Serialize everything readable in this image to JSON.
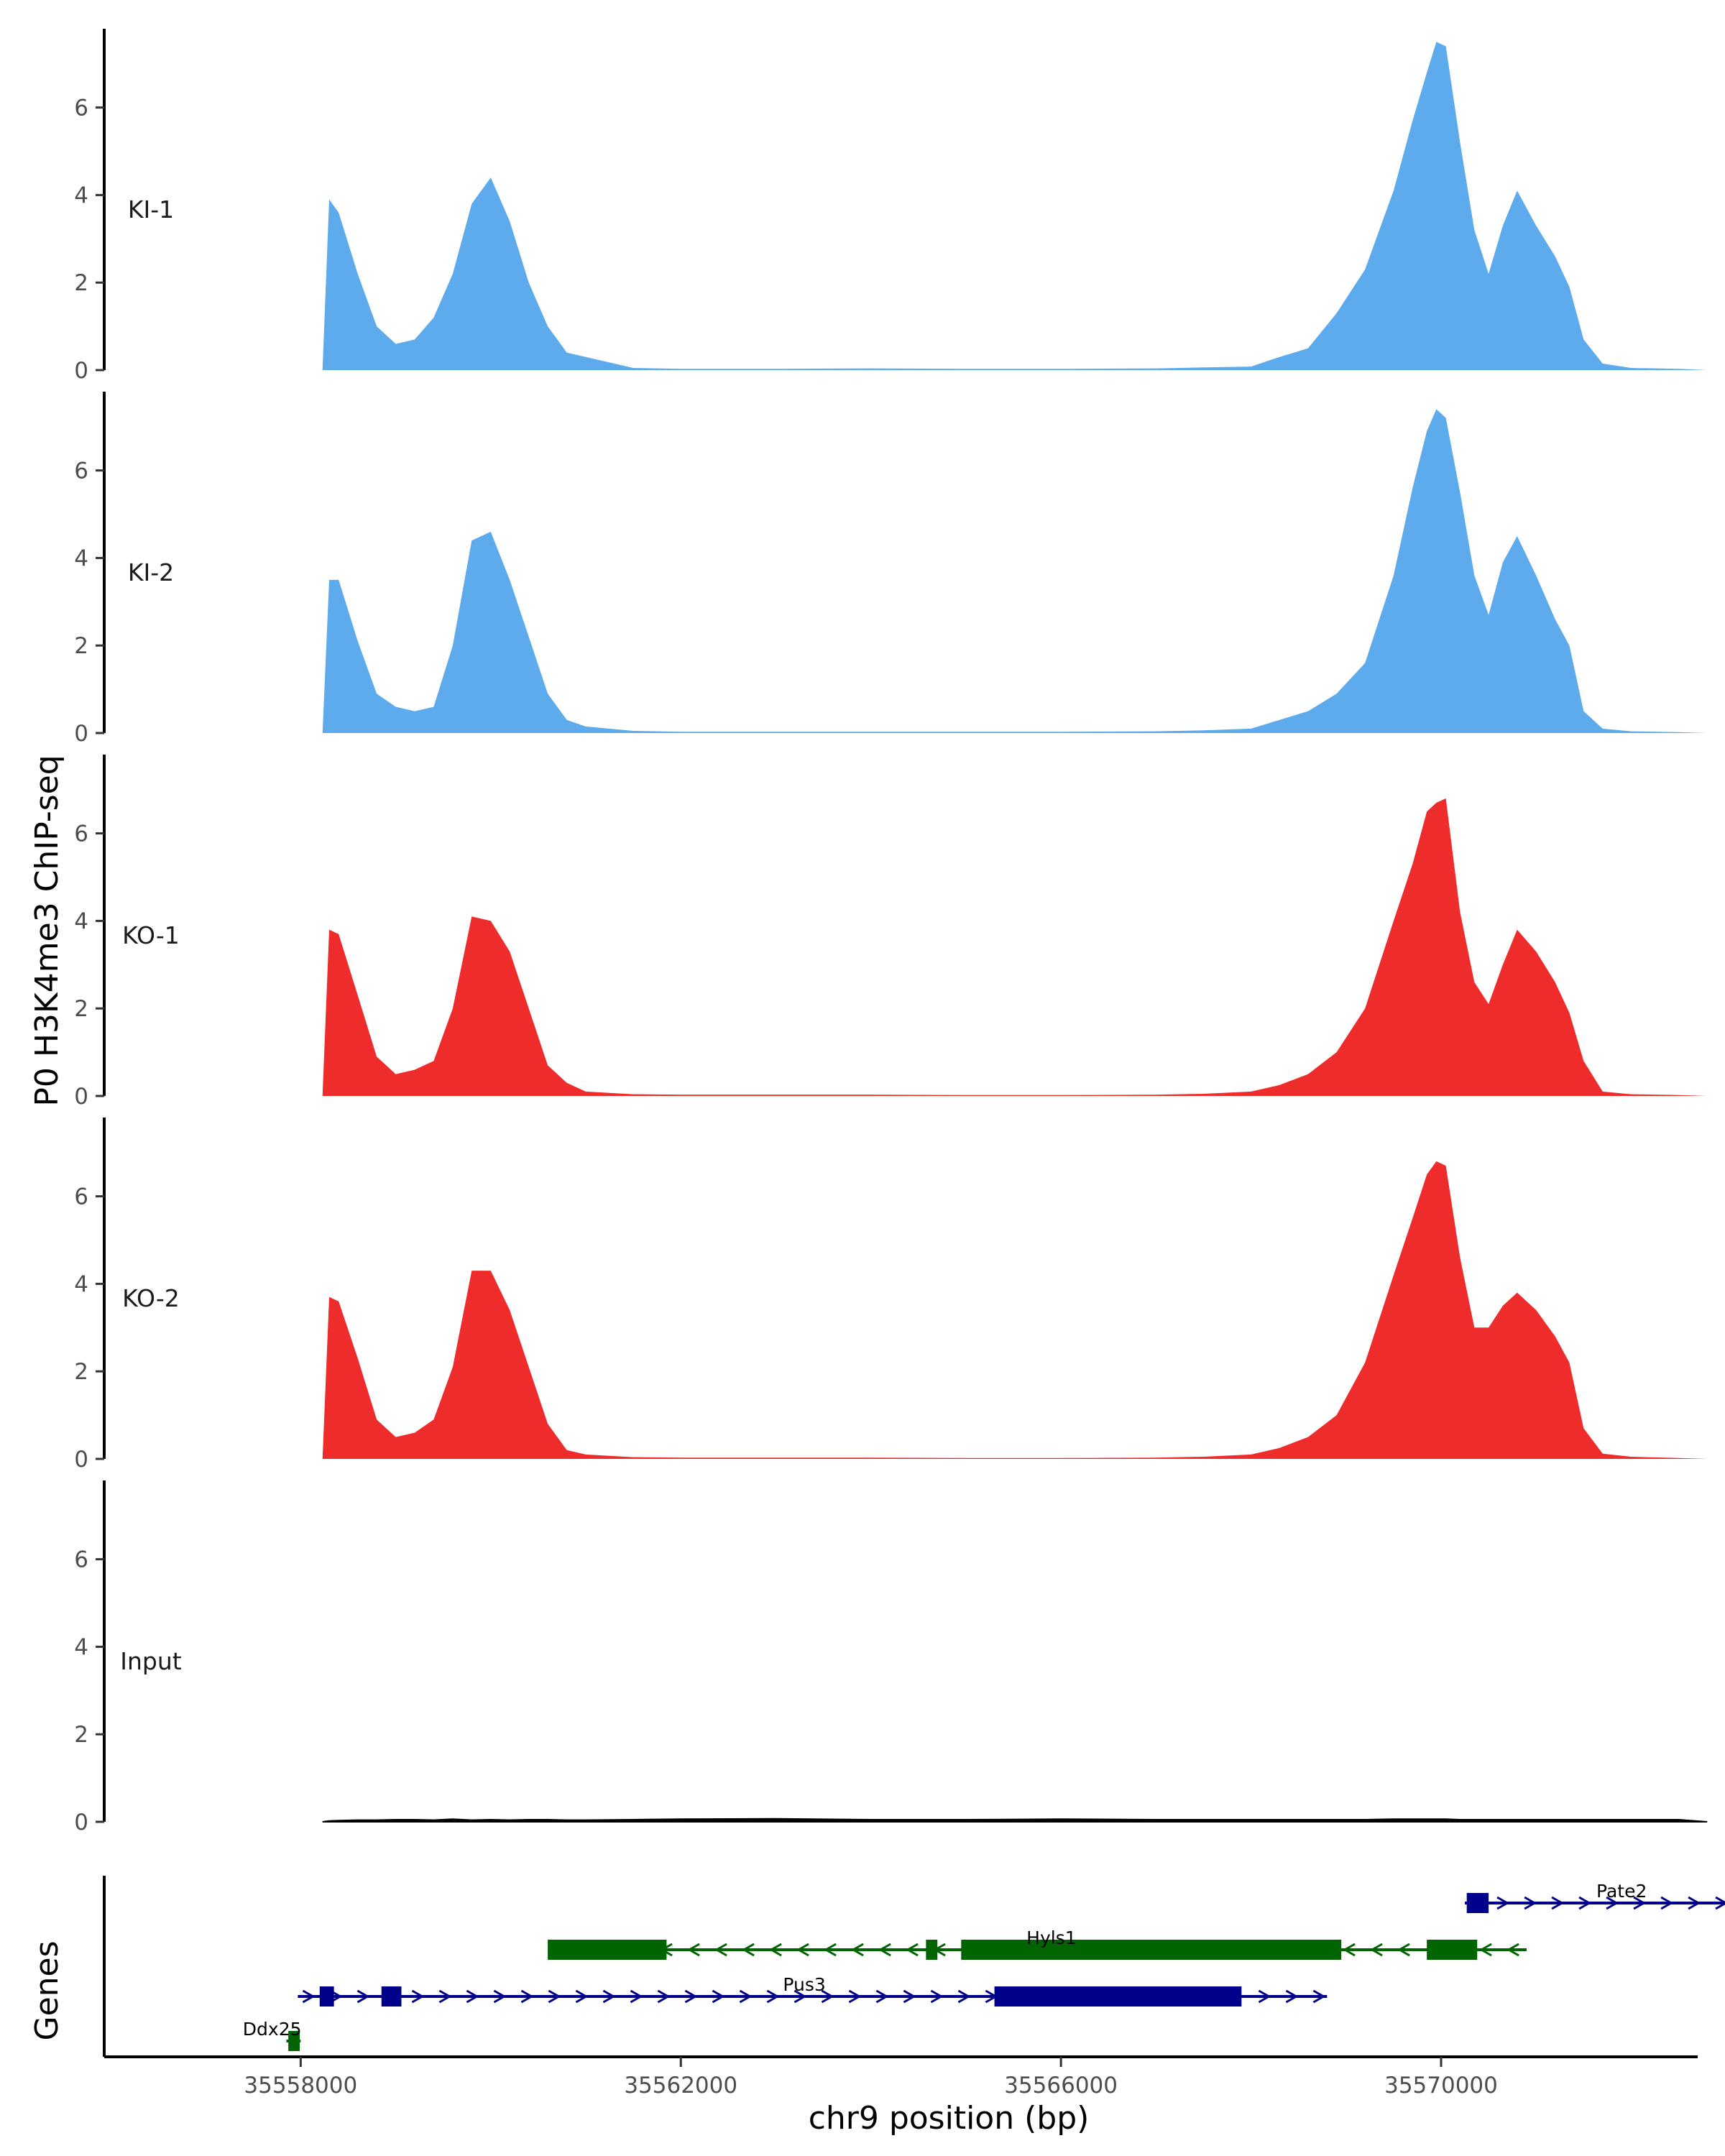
{
  "chart_data": {
    "type": "area",
    "title": "",
    "ylabel": "P0 H3K4me3 ChIP-seq",
    "xlabel": "chr9 position (bp)",
    "genes_label": "Genes",
    "ylim": [
      0,
      7.8
    ],
    "y_ticks": [
      "0",
      "2",
      "4",
      "6"
    ],
    "xlim": [
      35556500,
      35572700
    ],
    "x_ticks": [
      {
        "value": 35558000,
        "label": "35558000"
      },
      {
        "value": 35562000,
        "label": "35562000"
      },
      {
        "value": 35566000,
        "label": "35566000"
      },
      {
        "value": 35570000,
        "label": "35570000"
      }
    ],
    "x_positions": [
      35558230,
      35558300,
      35558400,
      35558600,
      35558800,
      35559000,
      35559200,
      35559400,
      35559600,
      35559800,
      35560000,
      35560200,
      35560400,
      35560600,
      35560800,
      35561000,
      35561500,
      35562000,
      35563000,
      35564000,
      35565000,
      35566000,
      35567000,
      35567500,
      35568000,
      35568300,
      35568600,
      35568900,
      35569200,
      35569500,
      35569700,
      35569850,
      35569950,
      35570050,
      35570200,
      35570350,
      35570500,
      35570650,
      35570800,
      35571000,
      35571200,
      35571350,
      35571500,
      35571700,
      35572000,
      35572500,
      35572800
    ],
    "series": [
      {
        "name": "KI-1",
        "color": "#5dabec",
        "values": [
          0.0,
          3.9,
          3.6,
          2.2,
          1.0,
          0.6,
          0.7,
          1.2,
          2.2,
          3.8,
          4.4,
          3.4,
          2.0,
          1.0,
          0.4,
          0.3,
          0.05,
          0.03,
          0.03,
          0.04,
          0.03,
          0.03,
          0.04,
          0.06,
          0.08,
          0.3,
          0.5,
          1.3,
          2.3,
          4.1,
          5.7,
          6.8,
          7.5,
          7.4,
          5.2,
          3.2,
          2.2,
          3.3,
          4.1,
          3.3,
          2.6,
          1.9,
          0.7,
          0.15,
          0.05,
          0.03,
          0.0
        ]
      },
      {
        "name": "KI-2",
        "color": "#5dabec",
        "values": [
          0.0,
          3.5,
          3.5,
          2.1,
          0.9,
          0.6,
          0.5,
          0.6,
          2.0,
          4.4,
          4.6,
          3.5,
          2.2,
          0.9,
          0.3,
          0.15,
          0.05,
          0.03,
          0.03,
          0.03,
          0.03,
          0.03,
          0.04,
          0.06,
          0.1,
          0.3,
          0.5,
          0.9,
          1.6,
          3.6,
          5.6,
          6.9,
          7.4,
          7.2,
          5.5,
          3.6,
          2.7,
          3.9,
          4.5,
          3.6,
          2.6,
          2.0,
          0.5,
          0.1,
          0.04,
          0.02,
          0.0
        ]
      },
      {
        "name": "KO-1",
        "color": "#ef2c2c",
        "values": [
          0.0,
          3.8,
          3.7,
          2.3,
          0.9,
          0.5,
          0.6,
          0.8,
          2.0,
          4.1,
          4.0,
          3.3,
          2.0,
          0.7,
          0.3,
          0.1,
          0.04,
          0.03,
          0.03,
          0.03,
          0.02,
          0.02,
          0.03,
          0.05,
          0.1,
          0.25,
          0.5,
          1.0,
          2.0,
          4.0,
          5.3,
          6.5,
          6.7,
          6.8,
          4.2,
          2.6,
          2.1,
          3.0,
          3.8,
          3.3,
          2.6,
          1.9,
          0.8,
          0.1,
          0.04,
          0.02,
          0.0
        ]
      },
      {
        "name": "KO-2",
        "color": "#ef2c2c",
        "values": [
          0.0,
          3.7,
          3.6,
          2.3,
          0.9,
          0.5,
          0.6,
          0.9,
          2.1,
          4.3,
          4.3,
          3.4,
          2.1,
          0.8,
          0.2,
          0.1,
          0.04,
          0.03,
          0.03,
          0.03,
          0.02,
          0.02,
          0.03,
          0.05,
          0.1,
          0.25,
          0.5,
          1.0,
          2.2,
          4.2,
          5.5,
          6.5,
          6.8,
          6.7,
          4.6,
          3.0,
          3.0,
          3.5,
          3.8,
          3.4,
          2.8,
          2.2,
          0.7,
          0.12,
          0.05,
          0.02,
          0.0
        ]
      },
      {
        "name": "Input",
        "color": "#000000",
        "values": [
          0.0,
          0.02,
          0.03,
          0.04,
          0.04,
          0.05,
          0.05,
          0.04,
          0.06,
          0.04,
          0.05,
          0.04,
          0.05,
          0.05,
          0.04,
          0.04,
          0.05,
          0.06,
          0.07,
          0.05,
          0.05,
          0.06,
          0.05,
          0.05,
          0.05,
          0.05,
          0.05,
          0.05,
          0.05,
          0.06,
          0.06,
          0.06,
          0.06,
          0.06,
          0.05,
          0.05,
          0.05,
          0.05,
          0.05,
          0.05,
          0.05,
          0.05,
          0.05,
          0.05,
          0.05,
          0.05,
          0.0
        ]
      }
    ],
    "genes": [
      {
        "name": "Pate2",
        "strand": "+",
        "color": "#00008b",
        "row": 0,
        "start": 35570250,
        "end": 35573100,
        "exons": [
          [
            35570270,
            35570500
          ]
        ],
        "label_pos": 35571900
      },
      {
        "name": "Hyls1",
        "strand": "-",
        "color": "#006400",
        "row": 1,
        "start": 35560600,
        "end": 35570900,
        "exons": [
          [
            35560600,
            35561850
          ],
          [
            35564580,
            35564700
          ],
          [
            35564950,
            35568950
          ],
          [
            35569850,
            35570380
          ]
        ],
        "label_pos": 35565900
      },
      {
        "name": "Pus3",
        "strand": "+",
        "color": "#00008b",
        "row": 2,
        "start": 35557970,
        "end": 35568800,
        "exons": [
          [
            35558200,
            35558350
          ],
          [
            35558850,
            35559060
          ],
          [
            35565300,
            35567900
          ]
        ],
        "label_pos": 35563300
      },
      {
        "name": "Ddx25",
        "strand": "-",
        "color": "#006400",
        "row": 3,
        "start": 35557850,
        "end": 35558000,
        "exons": [
          [
            35557870,
            35557990
          ]
        ],
        "label_pos": 35557700
      }
    ]
  }
}
